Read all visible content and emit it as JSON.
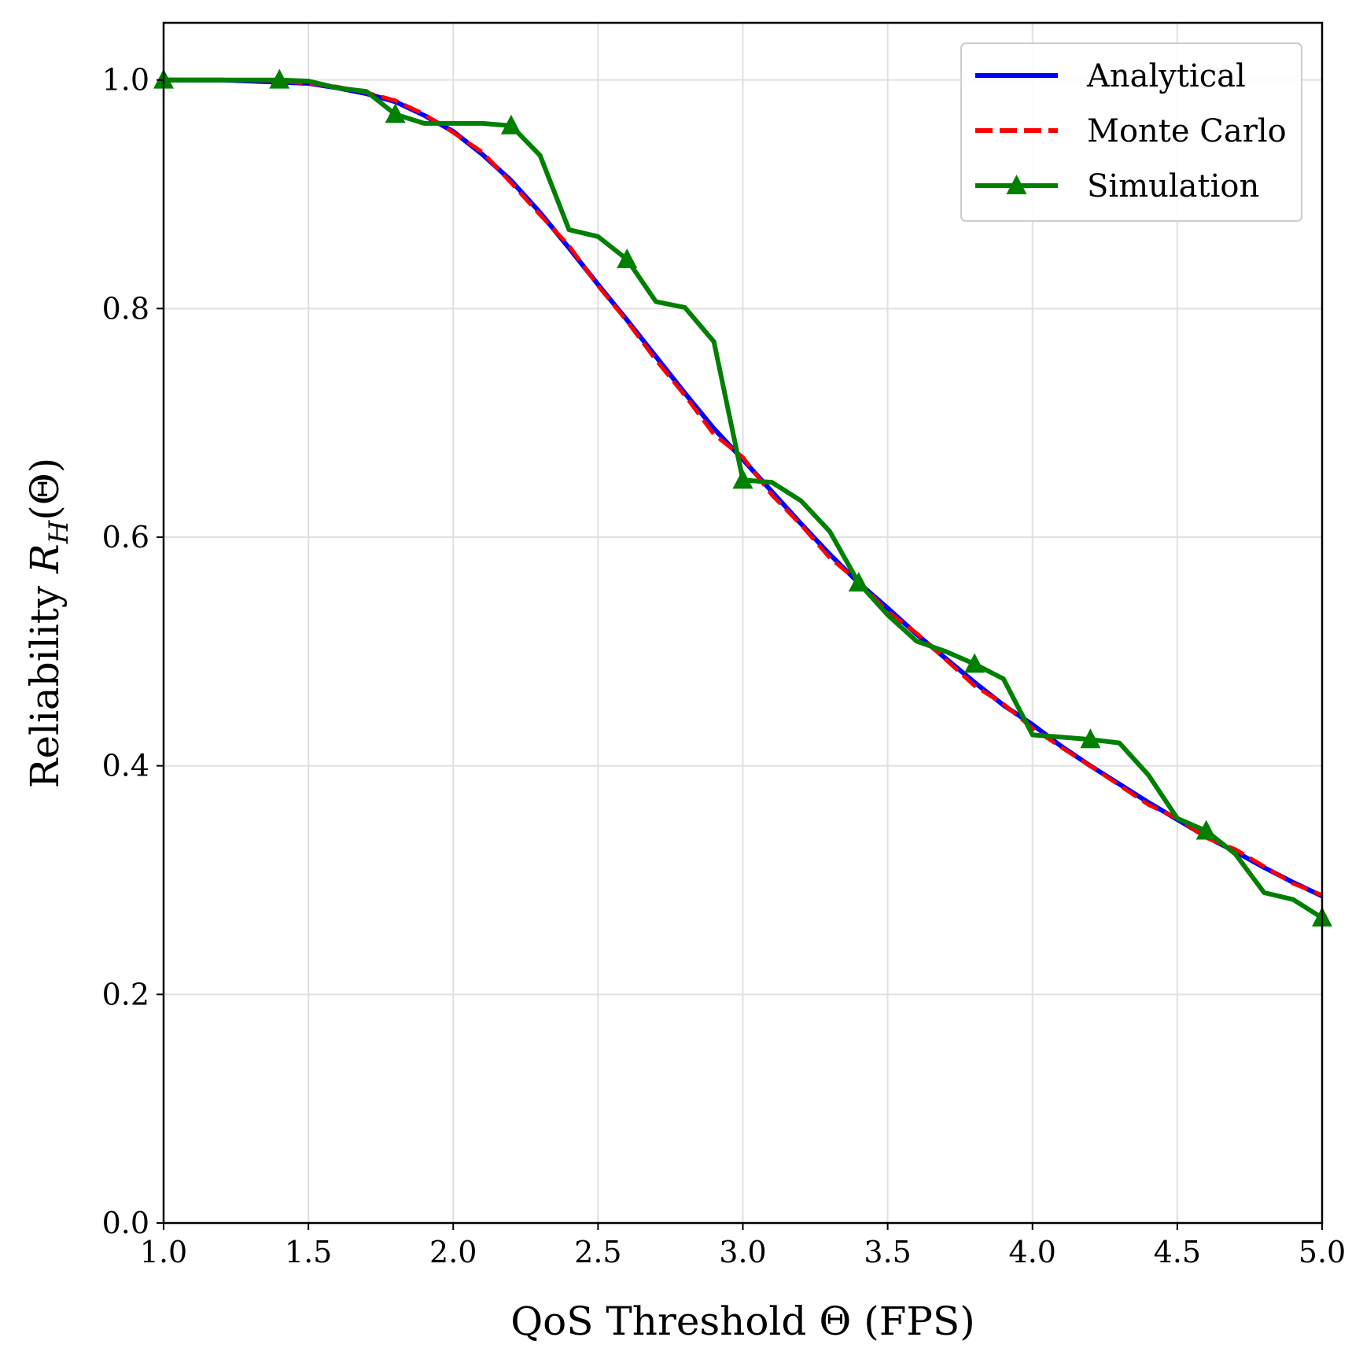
{
  "chart_data": {
    "type": "line",
    "title": "",
    "xlabel": "QoS Threshold Θ (FPS)",
    "ylabel_prefix": "Reliability ",
    "ylabel_var": "R",
    "ylabel_sub": "H",
    "ylabel_suffix": "(Θ)",
    "xlim": [
      1.0,
      5.0
    ],
    "ylim": [
      0.0,
      1.05
    ],
    "xticks": [
      1.0,
      1.5,
      2.0,
      2.5,
      3.0,
      3.5,
      4.0,
      4.5,
      5.0
    ],
    "xtick_labels": [
      "1.0",
      "1.5",
      "2.0",
      "2.5",
      "3.0",
      "3.5",
      "4.0",
      "4.5",
      "5.0"
    ],
    "yticks": [
      0.0,
      0.2,
      0.4,
      0.6,
      0.8,
      1.0
    ],
    "ytick_labels": [
      "0.0",
      "0.2",
      "0.4",
      "0.6",
      "0.8",
      "1.0"
    ],
    "grid": true,
    "legend_position": "top-right",
    "series": [
      {
        "name": "Analytical",
        "color": "#0000ff",
        "style": "solid",
        "x": [
          1.0,
          1.1,
          1.2,
          1.3,
          1.4,
          1.5,
          1.6,
          1.7,
          1.8,
          1.9,
          2.0,
          2.1,
          2.2,
          2.3,
          2.4,
          2.5,
          2.6,
          2.7,
          2.8,
          2.9,
          3.0,
          3.1,
          3.2,
          3.3,
          3.4,
          3.5,
          3.6,
          3.7,
          3.8,
          3.9,
          4.0,
          4.1,
          4.2,
          4.3,
          4.4,
          4.5,
          4.6,
          4.7,
          4.8,
          4.9,
          5.0
        ],
        "y": [
          1.0,
          1.0,
          1.0,
          0.999,
          0.998,
          0.997,
          0.993,
          0.988,
          0.981,
          0.969,
          0.955,
          0.935,
          0.912,
          0.884,
          0.853,
          0.821,
          0.79,
          0.758,
          0.726,
          0.695,
          0.668,
          0.64,
          0.612,
          0.585,
          0.56,
          0.538,
          0.515,
          0.494,
          0.473,
          0.453,
          0.436,
          0.417,
          0.4,
          0.384,
          0.368,
          0.353,
          0.338,
          0.325,
          0.311,
          0.298,
          0.286
        ]
      },
      {
        "name": "Monte Carlo",
        "color": "#ff0000",
        "style": "dashed",
        "x": [
          1.0,
          1.1,
          1.2,
          1.3,
          1.4,
          1.5,
          1.6,
          1.7,
          1.8,
          1.9,
          2.0,
          2.1,
          2.2,
          2.3,
          2.4,
          2.5,
          2.6,
          2.7,
          2.8,
          2.9,
          3.0,
          3.1,
          3.2,
          3.3,
          3.4,
          3.5,
          3.6,
          3.7,
          3.8,
          3.9,
          4.0,
          4.1,
          4.2,
          4.3,
          4.4,
          4.5,
          4.6,
          4.7,
          4.8,
          4.9,
          5.0
        ],
        "y": [
          1.0,
          1.0,
          1.0,
          1.0,
          0.999,
          0.997,
          0.994,
          0.989,
          0.982,
          0.97,
          0.954,
          0.937,
          0.91,
          0.882,
          0.855,
          0.82,
          0.789,
          0.755,
          0.724,
          0.69,
          0.67,
          0.637,
          0.611,
          0.582,
          0.561,
          0.535,
          0.516,
          0.493,
          0.47,
          0.454,
          0.433,
          0.416,
          0.4,
          0.383,
          0.366,
          0.354,
          0.337,
          0.327,
          0.312,
          0.297,
          0.287
        ]
      },
      {
        "name": "Simulation",
        "color": "#008000",
        "style": "solid",
        "marker": "triangle",
        "x": [
          1.0,
          1.1,
          1.2,
          1.3,
          1.4,
          1.5,
          1.6,
          1.7,
          1.8,
          1.9,
          2.0,
          2.1,
          2.2,
          2.3,
          2.4,
          2.5,
          2.6,
          2.7,
          2.8,
          2.9,
          3.0,
          3.1,
          3.2,
          3.3,
          3.4,
          3.5,
          3.6,
          3.7,
          3.8,
          3.9,
          4.0,
          4.1,
          4.2,
          4.3,
          4.4,
          4.5,
          4.6,
          4.7,
          4.8,
          4.9,
          5.0
        ],
        "y": [
          1.0,
          1.0,
          1.0,
          1.0,
          1.0,
          0.999,
          0.993,
          0.99,
          0.97,
          0.962,
          0.962,
          0.962,
          0.96,
          0.934,
          0.869,
          0.863,
          0.843,
          0.806,
          0.801,
          0.771,
          0.65,
          0.648,
          0.632,
          0.605,
          0.56,
          0.532,
          0.509,
          0.5,
          0.489,
          0.476,
          0.427,
          0.425,
          0.423,
          0.42,
          0.392,
          0.354,
          0.343,
          0.323,
          0.289,
          0.283,
          0.267
        ],
        "marker_x": [
          1.0,
          1.4,
          1.8,
          2.2,
          2.6,
          3.0,
          3.4,
          3.8,
          4.2,
          4.6,
          5.0
        ],
        "marker_y": [
          1.0,
          1.0,
          0.97,
          0.96,
          0.843,
          0.65,
          0.56,
          0.489,
          0.423,
          0.343,
          0.267
        ]
      }
    ]
  }
}
